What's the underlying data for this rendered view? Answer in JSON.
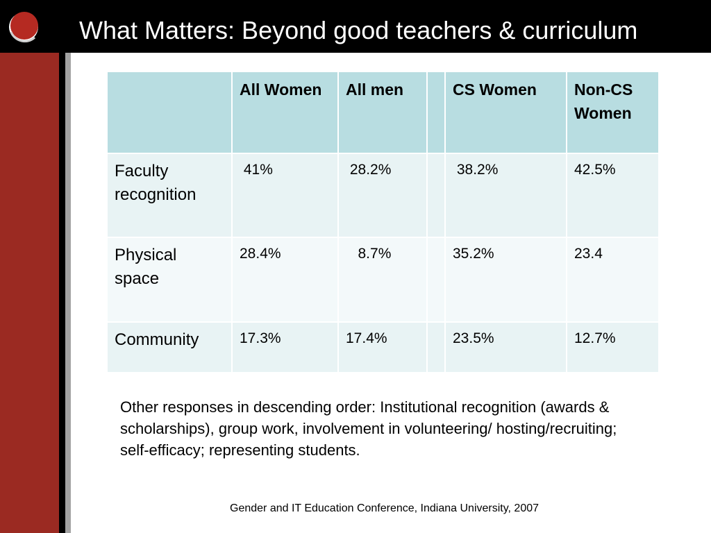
{
  "slide": {
    "title": "What Matters: Beyond good teachers & curriculum",
    "logo_icon": "red-circle-logo-icon",
    "colors": {
      "top_bar": "#000000",
      "left_bar": "#9b2a22",
      "header_fill": "#b8dde1",
      "row_fill_a": "#e8f3f4",
      "row_fill_b": "#f3f9fa"
    }
  },
  "table": {
    "headers": [
      "",
      "All Women",
      "All men",
      "",
      "CS Women",
      "Non-CS Women"
    ],
    "rows": [
      {
        "label": "Faculty recognition",
        "cells": [
          " 41%",
          " 28.2%",
          "",
          " 38.2%",
          "42.5%"
        ]
      },
      {
        "label": "Physical space",
        "cells": [
          "28.4%",
          "   8.7%",
          "",
          "35.2%",
          "23.4"
        ]
      },
      {
        "label": "Community",
        "cells": [
          "17.3%",
          "17.4%",
          "",
          "23.5%",
          "12.7%"
        ]
      }
    ]
  },
  "note": "Other responses in descending order:  Institutional recognition (awards & scholarships), group work,  involvement  in volunteering/ hosting/recruiting; self-efficacy; representing students.",
  "footer": "Gender and IT Education Conference, Indiana University, 2007"
}
